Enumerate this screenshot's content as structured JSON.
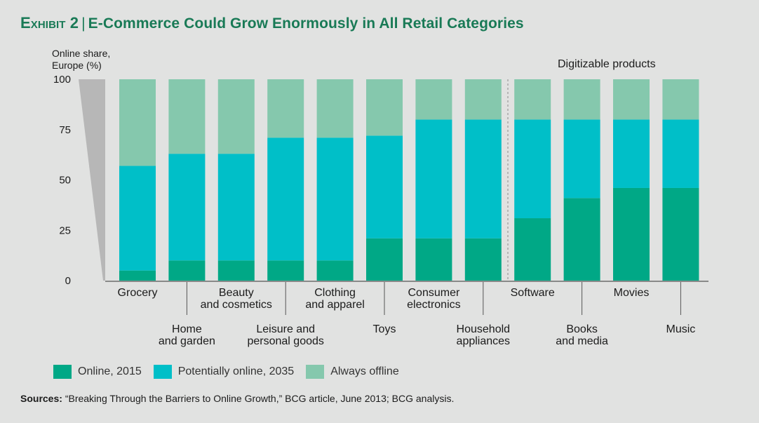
{
  "header": {
    "exhibit": "Exhibit 2",
    "separator": "|",
    "title": "E-Commerce Could Grow Enormously in All Retail Categories"
  },
  "colors": {
    "online_2015": "#00a886",
    "potentially_online_2035": "#00bfc8",
    "always_offline": "#85c8ad",
    "wedge": "#b7b7b7",
    "title": "#197a56"
  },
  "chart_data": {
    "type": "bar",
    "stacked": true,
    "title": "E-Commerce Could Grow Enormously in All Retail Categories",
    "ylabel_lines": [
      "Online share,",
      "Europe (%)"
    ],
    "ylim": [
      0,
      100
    ],
    "yticks": [
      0,
      25,
      50,
      75,
      100
    ],
    "group_label": "Digitizable products",
    "group_start_index": 8,
    "categories": [
      "Grocery",
      "Home and garden",
      "Beauty and cosmetics",
      "Leisure and personal goods",
      "Clothing and apparel",
      "Toys",
      "Consumer electronics",
      "Household appliances",
      "Software",
      "Books and media",
      "Movies",
      "Music"
    ],
    "category_label_lines": [
      [
        "Grocery"
      ],
      [
        "Home",
        "and garden"
      ],
      [
        "Beauty",
        "and cosmetics"
      ],
      [
        "Leisure and",
        "personal goods"
      ],
      [
        "Clothing",
        "and apparel"
      ],
      [
        "Toys"
      ],
      [
        "Consumer",
        "electronics"
      ],
      [
        "Household",
        "appliances"
      ],
      [
        "Software"
      ],
      [
        "Books",
        "and media"
      ],
      [
        "Movies"
      ],
      [
        "Music"
      ]
    ],
    "series": [
      {
        "name": "Online, 2015",
        "values": [
          5,
          10,
          10,
          10,
          10,
          21,
          21,
          21,
          31,
          41,
          46,
          46
        ]
      },
      {
        "name": "Potentially online, 2035",
        "values": [
          52,
          53,
          53,
          61,
          61,
          51,
          59,
          59,
          49,
          39,
          34,
          34
        ]
      },
      {
        "name": "Always offline",
        "values": [
          43,
          37,
          37,
          29,
          29,
          28,
          20,
          20,
          20,
          20,
          20,
          20
        ]
      }
    ]
  },
  "sources": {
    "label": "Sources:",
    "text": "“Breaking Through the Barriers to Online Growth,” BCG article, June 2013; BCG analysis."
  }
}
